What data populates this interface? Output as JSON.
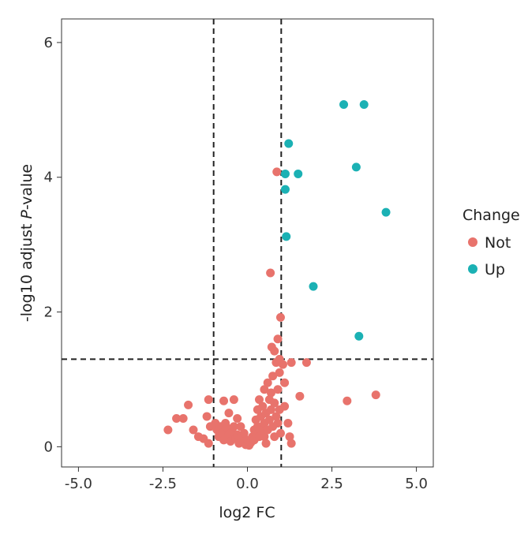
{
  "chart_data": {
    "type": "scatter",
    "title": "",
    "xlabel": "log2 FC",
    "ylabel_prefix": "-log10 adjust ",
    "ylabel_italic": "P",
    "ylabel_suffix": "-value",
    "xlim": [
      -5.5,
      5.5
    ],
    "ylim": [
      -0.3,
      6.35
    ],
    "xticks": [
      -5,
      -2.5,
      0,
      2.5,
      5
    ],
    "xtick_labels": [
      "-5.0",
      "-2.5",
      "0.0",
      "2.5",
      "5.0"
    ],
    "yticks": [
      0,
      2,
      4,
      6
    ],
    "ytick_labels": [
      "0",
      "2",
      "4",
      "6"
    ],
    "thresholds": {
      "vlines": [
        -1,
        1
      ],
      "hline": 1.3
    },
    "grid": false,
    "legend": {
      "title": "Change",
      "entries": [
        {
          "label": "Not",
          "color": "#E8736C"
        },
        {
          "label": "Up",
          "color": "#1BB1B4"
        }
      ]
    },
    "series": [
      {
        "name": "Not",
        "color": "#E8736C",
        "points": [
          [
            -2.35,
            0.25
          ],
          [
            -2.1,
            0.42
          ],
          [
            -1.9,
            0.42
          ],
          [
            -1.75,
            0.62
          ],
          [
            -1.6,
            0.25
          ],
          [
            -1.45,
            0.15
          ],
          [
            -1.3,
            0.12
          ],
          [
            -1.15,
            0.05
          ],
          [
            -1.2,
            0.45
          ],
          [
            -1.15,
            0.7
          ],
          [
            -0.95,
            0.35
          ],
          [
            -0.9,
            0.25
          ],
          [
            -0.85,
            0.15
          ],
          [
            -0.8,
            0.3
          ],
          [
            -0.75,
            0.2
          ],
          [
            -0.7,
            0.1
          ],
          [
            -0.65,
            0.35
          ],
          [
            -0.6,
            0.28
          ],
          [
            -0.55,
            0.18
          ],
          [
            -0.55,
            0.5
          ],
          [
            -0.5,
            0.08
          ],
          [
            -0.45,
            0.22
          ],
          [
            -0.4,
            0.3
          ],
          [
            -0.4,
            0.7
          ],
          [
            -0.35,
            0.12
          ],
          [
            -0.3,
            0.18
          ],
          [
            -0.3,
            0.42
          ],
          [
            -0.25,
            0.05
          ],
          [
            -0.2,
            0.15
          ],
          [
            -0.2,
            0.3
          ],
          [
            -0.15,
            0.08
          ],
          [
            -0.1,
            0.2
          ],
          [
            -0.05,
            0.03
          ],
          [
            0.0,
            0.1
          ],
          [
            0.05,
            0.02
          ],
          [
            0.1,
            0.06
          ],
          [
            0.15,
            0.15
          ],
          [
            0.2,
            0.25
          ],
          [
            0.2,
            0.1
          ],
          [
            0.25,
            0.4
          ],
          [
            0.25,
            0.2
          ],
          [
            0.3,
            0.55
          ],
          [
            0.3,
            0.3
          ],
          [
            0.35,
            0.15
          ],
          [
            0.35,
            0.7
          ],
          [
            0.4,
            0.45
          ],
          [
            0.45,
            0.25
          ],
          [
            0.45,
            0.6
          ],
          [
            0.5,
            0.35
          ],
          [
            0.5,
            0.85
          ],
          [
            0.5,
            0.15
          ],
          [
            0.55,
            0.5
          ],
          [
            0.6,
            0.95
          ],
          [
            0.6,
            0.25
          ],
          [
            0.65,
            0.4
          ],
          [
            0.65,
            0.7
          ],
          [
            0.7,
            0.55
          ],
          [
            0.7,
            0.8
          ],
          [
            0.75,
            0.3
          ],
          [
            0.75,
            1.05
          ],
          [
            0.8,
            0.65
          ],
          [
            0.8,
            0.15
          ],
          [
            0.85,
            0.45
          ],
          [
            0.85,
            1.25
          ],
          [
            0.9,
            0.85
          ],
          [
            0.9,
            0.35
          ],
          [
            0.95,
            0.55
          ],
          [
            0.95,
            1.1
          ],
          [
            0.98,
            0.2
          ],
          [
            0.72,
            1.48
          ],
          [
            0.8,
            1.42
          ],
          [
            0.9,
            1.6
          ],
          [
            0.98,
            1.92
          ],
          [
            0.95,
            1.3
          ],
          [
            0.68,
            2.58
          ],
          [
            0.87,
            4.08
          ],
          [
            1.05,
            1.22
          ],
          [
            1.1,
            0.95
          ],
          [
            1.1,
            0.6
          ],
          [
            1.2,
            0.35
          ],
          [
            1.25,
            0.15
          ],
          [
            1.3,
            0.05
          ],
          [
            1.3,
            1.25
          ],
          [
            1.55,
            0.75
          ],
          [
            1.75,
            1.25
          ],
          [
            2.95,
            0.68
          ],
          [
            3.8,
            0.77
          ],
          [
            -0.7,
            0.68
          ],
          [
            -1.1,
            0.3
          ],
          [
            0.55,
            0.05
          ]
        ]
      },
      {
        "name": "Up",
        "color": "#1BB1B4",
        "points": [
          [
            2.85,
            5.08
          ],
          [
            3.45,
            5.08
          ],
          [
            1.22,
            4.5
          ],
          [
            3.22,
            4.15
          ],
          [
            1.12,
            4.05
          ],
          [
            1.5,
            4.05
          ],
          [
            1.12,
            3.82
          ],
          [
            4.1,
            3.48
          ],
          [
            1.15,
            3.12
          ],
          [
            1.95,
            2.38
          ],
          [
            3.3,
            1.64
          ]
        ]
      }
    ]
  }
}
